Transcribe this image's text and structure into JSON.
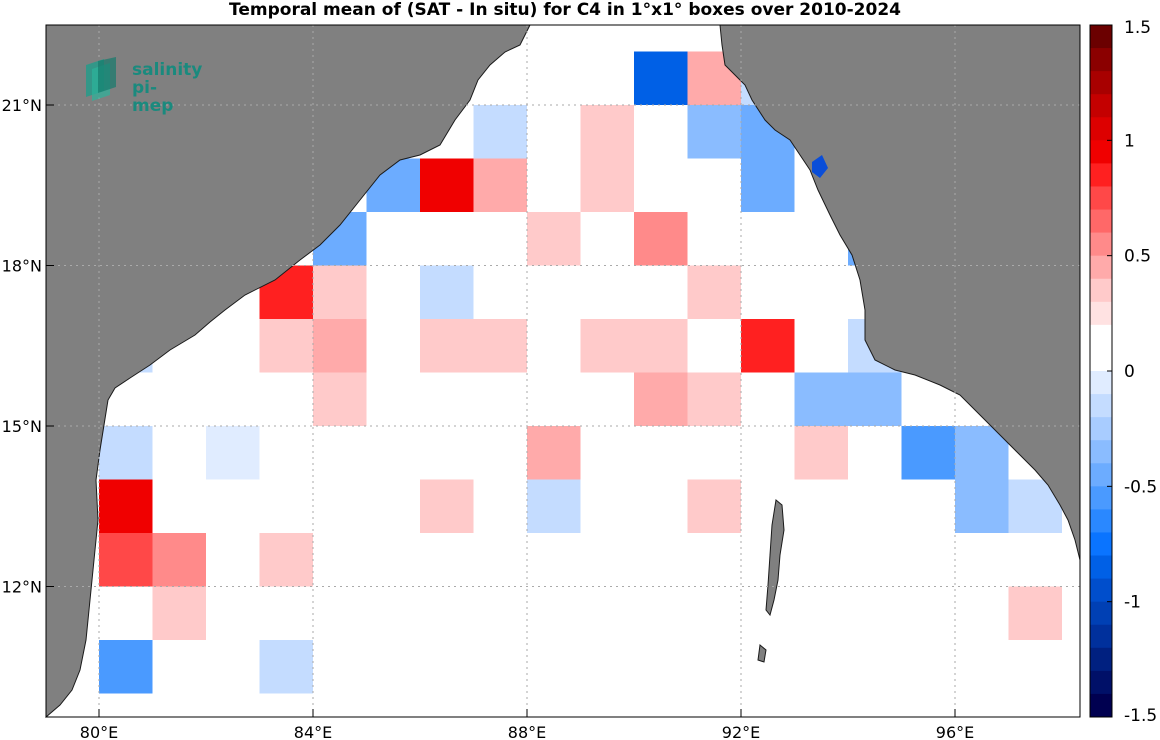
{
  "title": "Temporal mean of (SAT - In situ) for C4 in 1°x1° boxes over 2010-2024",
  "logo": {
    "line1": "salinity",
    "line2": "pi-mep"
  },
  "colors": {
    "land": "#808080",
    "ocean": "#ffffff",
    "grid": "#bbbbbb"
  },
  "chart_data": {
    "type": "heatmap",
    "x_range_lon": [
      79,
      99
    ],
    "y_range_lat": [
      9,
      22.7
    ],
    "x_ticks": [
      {
        "lon": 80,
        "label": "80°E"
      },
      {
        "lon": 84,
        "label": "84°E"
      },
      {
        "lon": 88,
        "label": "88°E"
      },
      {
        "lon": 92,
        "label": "92°E"
      },
      {
        "lon": 96,
        "label": "96°E"
      }
    ],
    "y_ticks": [
      {
        "lat": 21,
        "label": "21°N"
      },
      {
        "lat": 18,
        "label": "18°N"
      },
      {
        "lat": 15,
        "label": "15°N"
      },
      {
        "lat": 12,
        "label": "12°N"
      }
    ],
    "colorbar": {
      "min": -1.5,
      "max": 1.5,
      "ticks": [
        "1.5",
        "1",
        "0.5",
        "0",
        "-0.5",
        "-1",
        "-1.5"
      ],
      "colors": [
        "#6b0000",
        "#8b0000",
        "#a80000",
        "#c40000",
        "#dd0000",
        "#f00000",
        "#ff2020",
        "#ff4848",
        "#ff6868",
        "#ff8a8a",
        "#ffaaaa",
        "#ffcaca",
        "#ffe2e2",
        "#ffffff",
        "#ffffff",
        "#e0ecff",
        "#c4dcff",
        "#a8ccff",
        "#8abcff",
        "#6cacff",
        "#4a9aff",
        "#2a88ff",
        "#0a74ff",
        "#0060e6",
        "#004ecc",
        "#0040b4",
        "#00309c",
        "#002080",
        "#001068",
        "#000050"
      ]
    },
    "cells": [
      {
        "lon": 90.5,
        "lat": 21.5,
        "v": -0.9
      },
      {
        "lon": 91.5,
        "lat": 21.5,
        "v": 0.45
      },
      {
        "lon": 89.5,
        "lat": 21.5,
        "v": 0.15
      },
      {
        "lon": 92.5,
        "lat": 21.5,
        "v": -0.15
      },
      {
        "lon": 89.5,
        "lat": 20.5,
        "v": 0.4
      },
      {
        "lon": 88.5,
        "lat": 20.5,
        "v": 0.2
      },
      {
        "lon": 87.5,
        "lat": 20.5,
        "v": -0.15
      },
      {
        "lon": 91.5,
        "lat": 20.5,
        "v": -0.3
      },
      {
        "lon": 92.5,
        "lat": 20.5,
        "v": -0.4
      },
      {
        "lon": 93.5,
        "lat": 20.5,
        "v": 0.15
      },
      {
        "lon": 85.5,
        "lat": 19.5,
        "v": -0.4
      },
      {
        "lon": 86.5,
        "lat": 19.5,
        "v": 1.0
      },
      {
        "lon": 87.5,
        "lat": 19.5,
        "v": 0.45
      },
      {
        "lon": 88.5,
        "lat": 19.5,
        "v": 0.2
      },
      {
        "lon": 89.5,
        "lat": 19.5,
        "v": 0.4
      },
      {
        "lon": 90.5,
        "lat": 19.5,
        "v": 0.2
      },
      {
        "lon": 92.5,
        "lat": 19.5,
        "v": -0.4
      },
      {
        "lon": 84.5,
        "lat": 18.5,
        "v": -0.4
      },
      {
        "lon": 86.5,
        "lat": 18.5,
        "v": 0.15
      },
      {
        "lon": 87.5,
        "lat": 18.5,
        "v": 0.15
      },
      {
        "lon": 88.5,
        "lat": 18.5,
        "v": 0.4
      },
      {
        "lon": 90.5,
        "lat": 18.5,
        "v": 0.55
      },
      {
        "lon": 94.5,
        "lat": 18.5,
        "v": -0.4
      },
      {
        "lon": 83.5,
        "lat": 17.5,
        "v": 0.85
      },
      {
        "lon": 84.5,
        "lat": 17.5,
        "v": 0.3
      },
      {
        "lon": 86.5,
        "lat": 17.5,
        "v": -0.15
      },
      {
        "lon": 87.5,
        "lat": 17.5,
        "v": 0.15
      },
      {
        "lon": 90.5,
        "lat": 17.5,
        "v": 0.15
      },
      {
        "lon": 91.5,
        "lat": 17.5,
        "v": 0.3
      },
      {
        "lon": 83.5,
        "lat": 16.5,
        "v": 0.3
      },
      {
        "lon": 84.5,
        "lat": 16.5,
        "v": 0.45
      },
      {
        "lon": 86.5,
        "lat": 16.5,
        "v": 0.3
      },
      {
        "lon": 87.5,
        "lat": 16.5,
        "v": 0.3
      },
      {
        "lon": 89.5,
        "lat": 16.5,
        "v": 0.3
      },
      {
        "lon": 90.5,
        "lat": 16.5,
        "v": 0.3
      },
      {
        "lon": 92.5,
        "lat": 16.5,
        "v": 0.85
      },
      {
        "lon": 94.5,
        "lat": 16.5,
        "v": -0.15
      },
      {
        "lon": 80.5,
        "lat": 16.5,
        "v": -0.15
      },
      {
        "lon": 83.5,
        "lat": 15.5,
        "v": 0.15
      },
      {
        "lon": 84.5,
        "lat": 15.5,
        "v": 0.3
      },
      {
        "lon": 86.5,
        "lat": 15.5,
        "v": 0.15
      },
      {
        "lon": 88.5,
        "lat": 15.5,
        "v": 0.15
      },
      {
        "lon": 90.5,
        "lat": 15.5,
        "v": 0.45
      },
      {
        "lon": 91.5,
        "lat": 15.5,
        "v": 0.3
      },
      {
        "lon": 92.5,
        "lat": 15.5,
        "v": 0.15
      },
      {
        "lon": 93.5,
        "lat": 15.5,
        "v": -0.3
      },
      {
        "lon": 94.5,
        "lat": 15.5,
        "v": -0.3
      },
      {
        "lon": 80.5,
        "lat": 14.5,
        "v": -0.15
      },
      {
        "lon": 82.5,
        "lat": 14.5,
        "v": 0.0
      },
      {
        "lon": 83.5,
        "lat": 14.5,
        "v": 0.15
      },
      {
        "lon": 84.5,
        "lat": 14.5,
        "v": 0.15
      },
      {
        "lon": 85.5,
        "lat": 14.5,
        "v": 0.15
      },
      {
        "lon": 88.5,
        "lat": 14.5,
        "v": 0.45
      },
      {
        "lon": 89.5,
        "lat": 14.5,
        "v": 0.15
      },
      {
        "lon": 90.5,
        "lat": 14.5,
        "v": 0.15
      },
      {
        "lon": 91.5,
        "lat": 14.5,
        "v": 0.15
      },
      {
        "lon": 92.5,
        "lat": 14.5,
        "v": 0.15
      },
      {
        "lon": 93.5,
        "lat": 14.5,
        "v": 0.3
      },
      {
        "lon": 95.5,
        "lat": 14.5,
        "v": -0.55
      },
      {
        "lon": 96.5,
        "lat": 14.5,
        "v": -0.3
      },
      {
        "lon": 80.5,
        "lat": 13.5,
        "v": 0.95
      },
      {
        "lon": 83.5,
        "lat": 13.5,
        "v": 0.15
      },
      {
        "lon": 86.5,
        "lat": 13.5,
        "v": 0.3
      },
      {
        "lon": 88.5,
        "lat": 13.5,
        "v": -0.15
      },
      {
        "lon": 91.5,
        "lat": 13.5,
        "v": 0.3
      },
      {
        "lon": 95.5,
        "lat": 13.5,
        "v": 0.15
      },
      {
        "lon": 96.5,
        "lat": 13.5,
        "v": -0.3
      },
      {
        "lon": 97.5,
        "lat": 13.5,
        "v": -0.15
      },
      {
        "lon": 80.5,
        "lat": 12.5,
        "v": 0.75
      },
      {
        "lon": 81.5,
        "lat": 12.5,
        "v": 0.6
      },
      {
        "lon": 83.5,
        "lat": 12.5,
        "v": 0.3
      },
      {
        "lon": 84.5,
        "lat": 12.5,
        "v": 0.15
      },
      {
        "lon": 90.5,
        "lat": 12.5,
        "v": 0.15
      },
      {
        "lon": 92.5,
        "lat": 12.5,
        "v": 0.15
      },
      {
        "lon": 93.5,
        "lat": 12.5,
        "v": 0.15
      },
      {
        "lon": 81.5,
        "lat": 11.5,
        "v": 0.3
      },
      {
        "lon": 82.5,
        "lat": 11.5,
        "v": 0.15
      },
      {
        "lon": 85.5,
        "lat": 11.5,
        "v": 0.15
      },
      {
        "lon": 86.5,
        "lat": 11.5,
        "v": 0.15
      },
      {
        "lon": 87.5,
        "lat": 11.5,
        "v": 0.15
      },
      {
        "lon": 92.5,
        "lat": 11.5,
        "v": 0.15
      },
      {
        "lon": 97.5,
        "lat": 11.5,
        "v": 0.3
      },
      {
        "lon": 80.5,
        "lat": 10.5,
        "v": -0.55
      },
      {
        "lon": 82.5,
        "lat": 10.5,
        "v": 0.15
      },
      {
        "lon": 83.5,
        "lat": 10.5,
        "v": -0.15
      },
      {
        "lon": 84.5,
        "lat": 10.5,
        "v": 0.15
      },
      {
        "lon": 86.5,
        "lat": 10.5,
        "v": 0.15
      },
      {
        "lon": 91.5,
        "lat": 10.5,
        "v": 0.15
      }
    ]
  }
}
